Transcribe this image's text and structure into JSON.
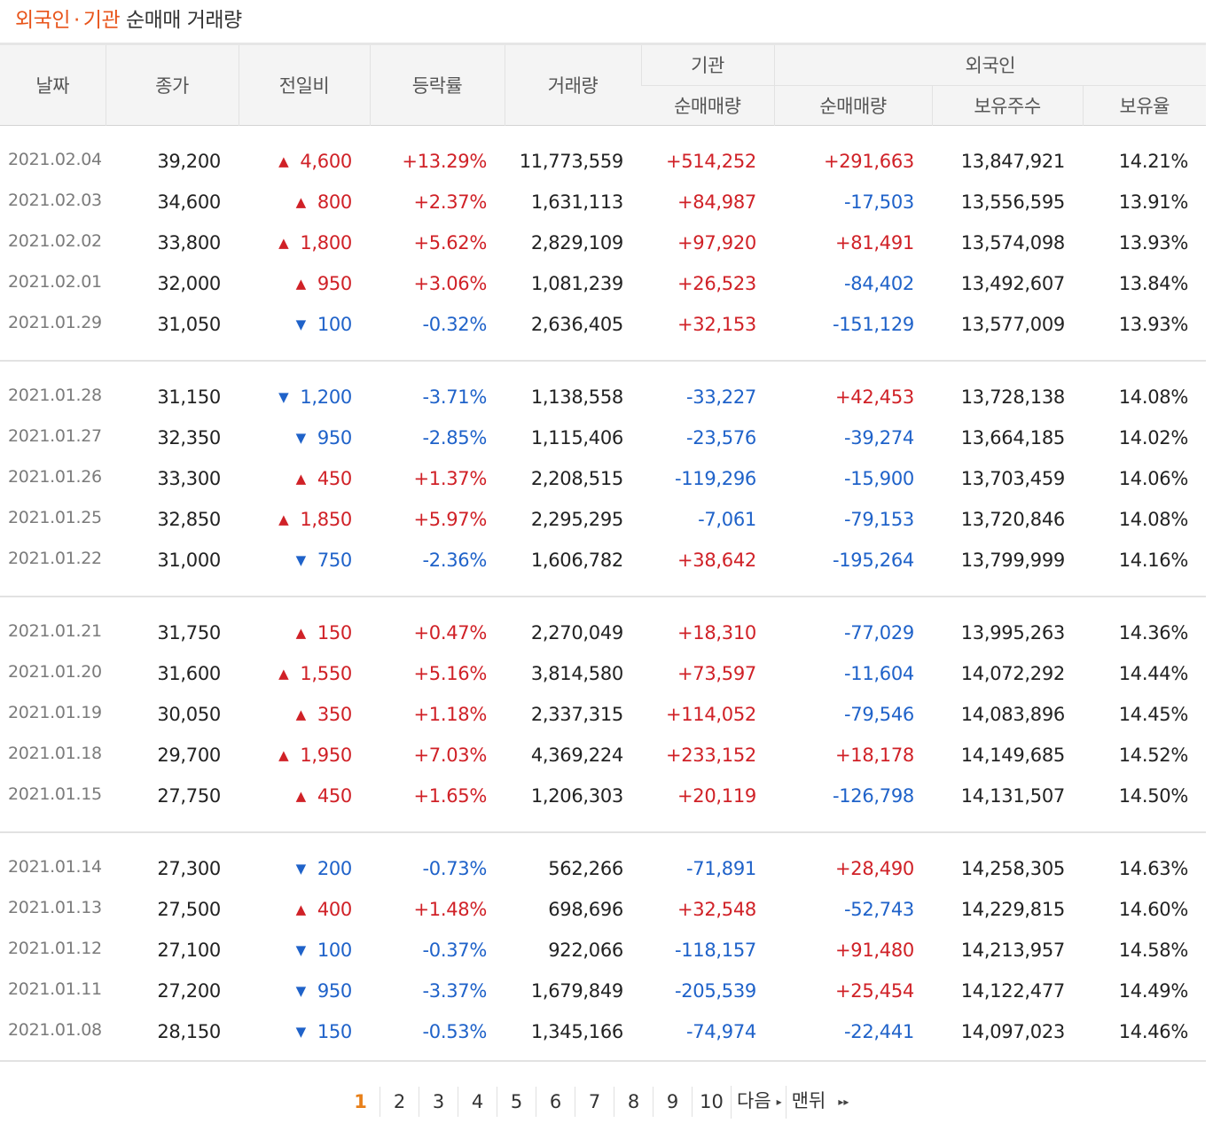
{
  "title": {
    "part1": "외국인",
    "separator": "·",
    "part2": "기관",
    "rest": "순매매 거래량"
  },
  "headers": {
    "date": "날짜",
    "close": "종가",
    "change": "전일비",
    "rate": "등락률",
    "volume": "거래량",
    "institution": "기관",
    "foreign": "외국인",
    "inst_net": "순매매량",
    "foreign_net": "순매매량",
    "holdings": "보유주수",
    "ratio": "보유율"
  },
  "groups": [
    [
      {
        "date": "2021.02.04",
        "close": "39,200",
        "dir": "up",
        "change": "4,600",
        "rate": "+13.29%",
        "volume": "11,773,559",
        "inst": "+514,252",
        "foreign": "+291,663",
        "holdings": "13,847,921",
        "ratio": "14.21%"
      },
      {
        "date": "2021.02.03",
        "close": "34,600",
        "dir": "up",
        "change": "800",
        "rate": "+2.37%",
        "volume": "1,631,113",
        "inst": "+84,987",
        "foreign": "-17,503",
        "holdings": "13,556,595",
        "ratio": "13.91%"
      },
      {
        "date": "2021.02.02",
        "close": "33,800",
        "dir": "up",
        "change": "1,800",
        "rate": "+5.62%",
        "volume": "2,829,109",
        "inst": "+97,920",
        "foreign": "+81,491",
        "holdings": "13,574,098",
        "ratio": "13.93%"
      },
      {
        "date": "2021.02.01",
        "close": "32,000",
        "dir": "up",
        "change": "950",
        "rate": "+3.06%",
        "volume": "1,081,239",
        "inst": "+26,523",
        "foreign": "-84,402",
        "holdings": "13,492,607",
        "ratio": "13.84%"
      },
      {
        "date": "2021.01.29",
        "close": "31,050",
        "dir": "down",
        "change": "100",
        "rate": "-0.32%",
        "volume": "2,636,405",
        "inst": "+32,153",
        "foreign": "-151,129",
        "holdings": "13,577,009",
        "ratio": "13.93%"
      }
    ],
    [
      {
        "date": "2021.01.28",
        "close": "31,150",
        "dir": "down",
        "change": "1,200",
        "rate": "-3.71%",
        "volume": "1,138,558",
        "inst": "-33,227",
        "foreign": "+42,453",
        "holdings": "13,728,138",
        "ratio": "14.08%"
      },
      {
        "date": "2021.01.27",
        "close": "32,350",
        "dir": "down",
        "change": "950",
        "rate": "-2.85%",
        "volume": "1,115,406",
        "inst": "-23,576",
        "foreign": "-39,274",
        "holdings": "13,664,185",
        "ratio": "14.02%"
      },
      {
        "date": "2021.01.26",
        "close": "33,300",
        "dir": "up",
        "change": "450",
        "rate": "+1.37%",
        "volume": "2,208,515",
        "inst": "-119,296",
        "foreign": "-15,900",
        "holdings": "13,703,459",
        "ratio": "14.06%"
      },
      {
        "date": "2021.01.25",
        "close": "32,850",
        "dir": "up",
        "change": "1,850",
        "rate": "+5.97%",
        "volume": "2,295,295",
        "inst": "-7,061",
        "foreign": "-79,153",
        "holdings": "13,720,846",
        "ratio": "14.08%"
      },
      {
        "date": "2021.01.22",
        "close": "31,000",
        "dir": "down",
        "change": "750",
        "rate": "-2.36%",
        "volume": "1,606,782",
        "inst": "+38,642",
        "foreign": "-195,264",
        "holdings": "13,799,999",
        "ratio": "14.16%"
      }
    ],
    [
      {
        "date": "2021.01.21",
        "close": "31,750",
        "dir": "up",
        "change": "150",
        "rate": "+0.47%",
        "volume": "2,270,049",
        "inst": "+18,310",
        "foreign": "-77,029",
        "holdings": "13,995,263",
        "ratio": "14.36%"
      },
      {
        "date": "2021.01.20",
        "close": "31,600",
        "dir": "up",
        "change": "1,550",
        "rate": "+5.16%",
        "volume": "3,814,580",
        "inst": "+73,597",
        "foreign": "-11,604",
        "holdings": "14,072,292",
        "ratio": "14.44%"
      },
      {
        "date": "2021.01.19",
        "close": "30,050",
        "dir": "up",
        "change": "350",
        "rate": "+1.18%",
        "volume": "2,337,315",
        "inst": "+114,052",
        "foreign": "-79,546",
        "holdings": "14,083,896",
        "ratio": "14.45%"
      },
      {
        "date": "2021.01.18",
        "close": "29,700",
        "dir": "up",
        "change": "1,950",
        "rate": "+7.03%",
        "volume": "4,369,224",
        "inst": "+233,152",
        "foreign": "+18,178",
        "holdings": "14,149,685",
        "ratio": "14.52%"
      },
      {
        "date": "2021.01.15",
        "close": "27,750",
        "dir": "up",
        "change": "450",
        "rate": "+1.65%",
        "volume": "1,206,303",
        "inst": "+20,119",
        "foreign": "-126,798",
        "holdings": "14,131,507",
        "ratio": "14.50%"
      }
    ],
    [
      {
        "date": "2021.01.14",
        "close": "27,300",
        "dir": "down",
        "change": "200",
        "rate": "-0.73%",
        "volume": "562,266",
        "inst": "-71,891",
        "foreign": "+28,490",
        "holdings": "14,258,305",
        "ratio": "14.63%"
      },
      {
        "date": "2021.01.13",
        "close": "27,500",
        "dir": "up",
        "change": "400",
        "rate": "+1.48%",
        "volume": "698,696",
        "inst": "+32,548",
        "foreign": "-52,743",
        "holdings": "14,229,815",
        "ratio": "14.60%"
      },
      {
        "date": "2021.01.12",
        "close": "27,100",
        "dir": "down",
        "change": "100",
        "rate": "-0.37%",
        "volume": "922,066",
        "inst": "-118,157",
        "foreign": "+91,480",
        "holdings": "14,213,957",
        "ratio": "14.58%"
      },
      {
        "date": "2021.01.11",
        "close": "27,200",
        "dir": "down",
        "change": "950",
        "rate": "-3.37%",
        "volume": "1,679,849",
        "inst": "-205,539",
        "foreign": "+25,454",
        "holdings": "14,122,477",
        "ratio": "14.49%"
      },
      {
        "date": "2021.01.08",
        "close": "28,150",
        "dir": "down",
        "change": "150",
        "rate": "-0.53%",
        "volume": "1,345,166",
        "inst": "-74,974",
        "foreign": "-22,441",
        "holdings": "14,097,023",
        "ratio": "14.46%"
      }
    ]
  ],
  "pager": {
    "pages": [
      "1",
      "2",
      "3",
      "4",
      "5",
      "6",
      "7",
      "8",
      "9",
      "10"
    ],
    "current": "1",
    "next_label": "다음",
    "last_label": "맨뒤",
    "next_arrow": "▸",
    "last_arrow": "▸▸"
  },
  "symbols": {
    "up": "▲",
    "down": "▼"
  },
  "colors": {
    "up": "#d02127",
    "down": "#1f62c9",
    "accent": "#e8541a",
    "current_page": "#e8801a"
  }
}
